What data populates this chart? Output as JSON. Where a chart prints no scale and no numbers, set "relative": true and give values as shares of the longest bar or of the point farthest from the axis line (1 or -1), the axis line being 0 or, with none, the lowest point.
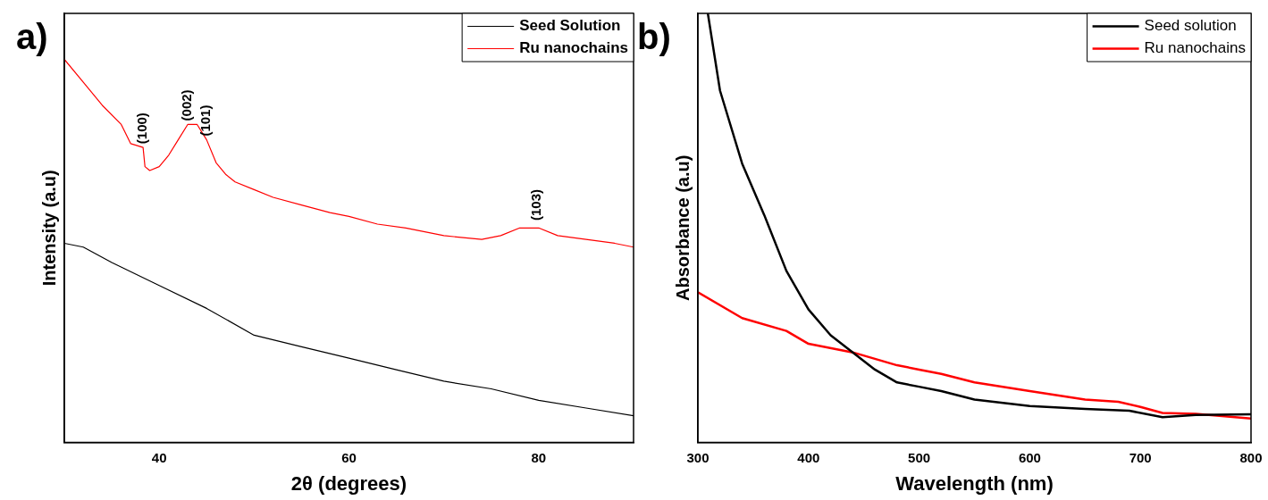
{
  "chart_data": [
    {
      "type": "line",
      "title": "a)",
      "xlabel": "2θ (degrees)",
      "ylabel": "Intensity (a.u)",
      "relative": true,
      "xlim": [
        30,
        90
      ],
      "xticks": [
        40,
        60,
        80
      ],
      "legend": "top right",
      "grid": false,
      "marker": "none",
      "line_style": "solid",
      "annotations": [
        {
          "text": "(100)",
          "x": 38.3,
          "y": 0.77
        },
        {
          "text": "(002)",
          "x": 43,
          "y": 0.83
        },
        {
          "text": "(101)",
          "x": 45,
          "y": 0.79
        },
        {
          "text": "(103)",
          "x": 79.8,
          "y": 0.57
        }
      ],
      "series": [
        {
          "name": "Seed Solution",
          "color": "#000000",
          "x": [
            30,
            32,
            35,
            40,
            45,
            50,
            55,
            60,
            65,
            70,
            75,
            80,
            85,
            90
          ],
          "values": [
            0.52,
            0.51,
            0.47,
            0.41,
            0.35,
            0.28,
            0.25,
            0.22,
            0.19,
            0.16,
            0.14,
            0.11,
            0.09,
            0.07
          ]
        },
        {
          "name": "Ru nanochains",
          "color": "#ff0000",
          "x": [
            30,
            32,
            34,
            36,
            37,
            38.3,
            38.5,
            39,
            40,
            41,
            42,
            43,
            44,
            45,
            46,
            47,
            48,
            50,
            52,
            55,
            58,
            60,
            63,
            66,
            70,
            74,
            76,
            78,
            80,
            82,
            85,
            88,
            90
          ],
          "values": [
            1.0,
            0.94,
            0.88,
            0.83,
            0.78,
            0.77,
            0.72,
            0.71,
            0.72,
            0.75,
            0.79,
            0.83,
            0.83,
            0.79,
            0.73,
            0.7,
            0.68,
            0.66,
            0.64,
            0.62,
            0.6,
            0.59,
            0.57,
            0.56,
            0.54,
            0.53,
            0.54,
            0.56,
            0.56,
            0.54,
            0.53,
            0.52,
            0.51
          ]
        }
      ]
    },
    {
      "type": "line",
      "title": "b)",
      "xlabel": "Wavelength (nm)",
      "ylabel": "Absorbance (a.u)",
      "relative": true,
      "xlim": [
        300,
        800
      ],
      "xticks": [
        300,
        400,
        500,
        600,
        700,
        800
      ],
      "legend": "top right",
      "grid": false,
      "marker": "none",
      "line_style": "solid",
      "series": [
        {
          "name": "Seed solution",
          "color": "#000000",
          "x": [
            309,
            320,
            340,
            360,
            380,
            400,
            420,
            440,
            460,
            480,
            500,
            520,
            550,
            600,
            650,
            690,
            720,
            750,
            800
          ],
          "values": [
            1.0,
            0.82,
            0.65,
            0.53,
            0.4,
            0.31,
            0.25,
            0.21,
            0.17,
            0.14,
            0.13,
            0.12,
            0.1,
            0.085,
            0.078,
            0.074,
            0.059,
            0.064,
            0.066
          ]
        },
        {
          "name": "Ru nanochains",
          "color": "#ff0000",
          "x": [
            300,
            340,
            380,
            400,
            440,
            480,
            500,
            520,
            550,
            600,
            650,
            680,
            700,
            720,
            750,
            800
          ],
          "values": [
            0.35,
            0.29,
            0.26,
            0.23,
            0.21,
            0.18,
            0.17,
            0.16,
            0.14,
            0.12,
            0.1,
            0.095,
            0.083,
            0.069,
            0.067,
            0.056
          ]
        }
      ]
    }
  ]
}
